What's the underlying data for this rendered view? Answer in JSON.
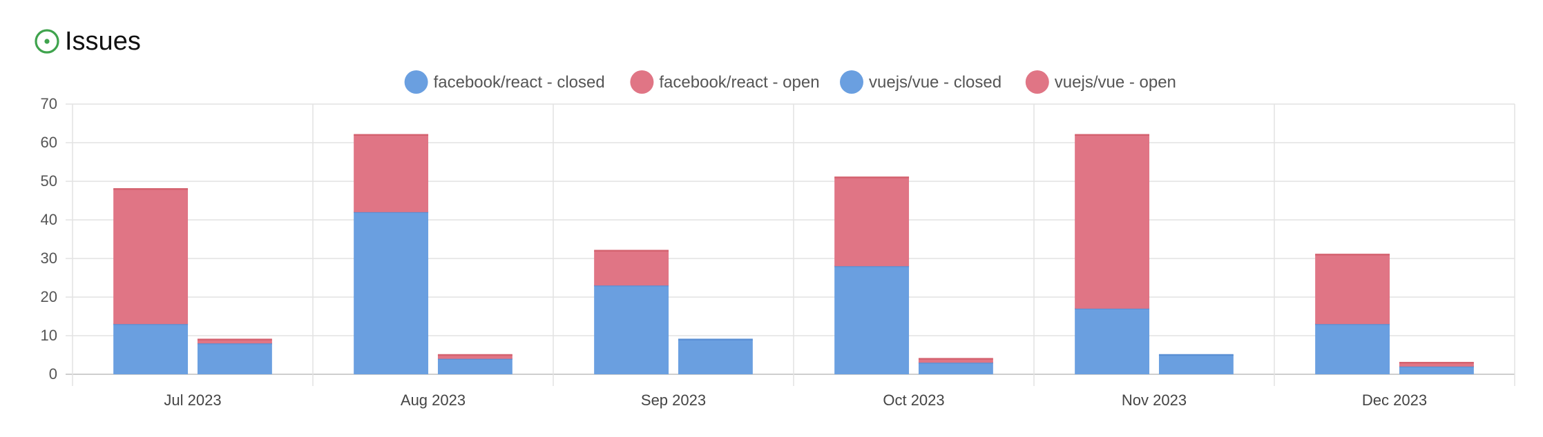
{
  "header": {
    "title": "Issues",
    "icon": "issue-opened-icon",
    "icon_color": "#3fa34d"
  },
  "chart_data": {
    "type": "bar",
    "stacked": true,
    "grouped": true,
    "categories": [
      "Jul 2023",
      "Aug 2023",
      "Sep 2023",
      "Oct 2023",
      "Nov 2023",
      "Dec 2023"
    ],
    "legend_position": "top-center",
    "grid": true,
    "ylim": [
      0,
      70
    ],
    "yticks": [
      0,
      10,
      20,
      30,
      40,
      50,
      60,
      70
    ],
    "series": [
      {
        "name": "facebook/react - closed",
        "stack": "facebook/react",
        "color": "#6a9fe0",
        "values": [
          13,
          42,
          23,
          28,
          17,
          13
        ]
      },
      {
        "name": "facebook/react - open",
        "stack": "facebook/react",
        "color": "#e07585",
        "values": [
          35,
          20,
          9,
          23,
          45,
          18
        ]
      },
      {
        "name": "vuejs/vue - closed",
        "stack": "vuejs/vue",
        "color": "#6a9fe0",
        "values": [
          8,
          4,
          9,
          3,
          5,
          2
        ]
      },
      {
        "name": "vuejs/vue - open",
        "stack": "vuejs/vue",
        "color": "#e07585",
        "values": [
          1,
          1,
          0,
          1,
          0,
          1
        ]
      }
    ]
  }
}
